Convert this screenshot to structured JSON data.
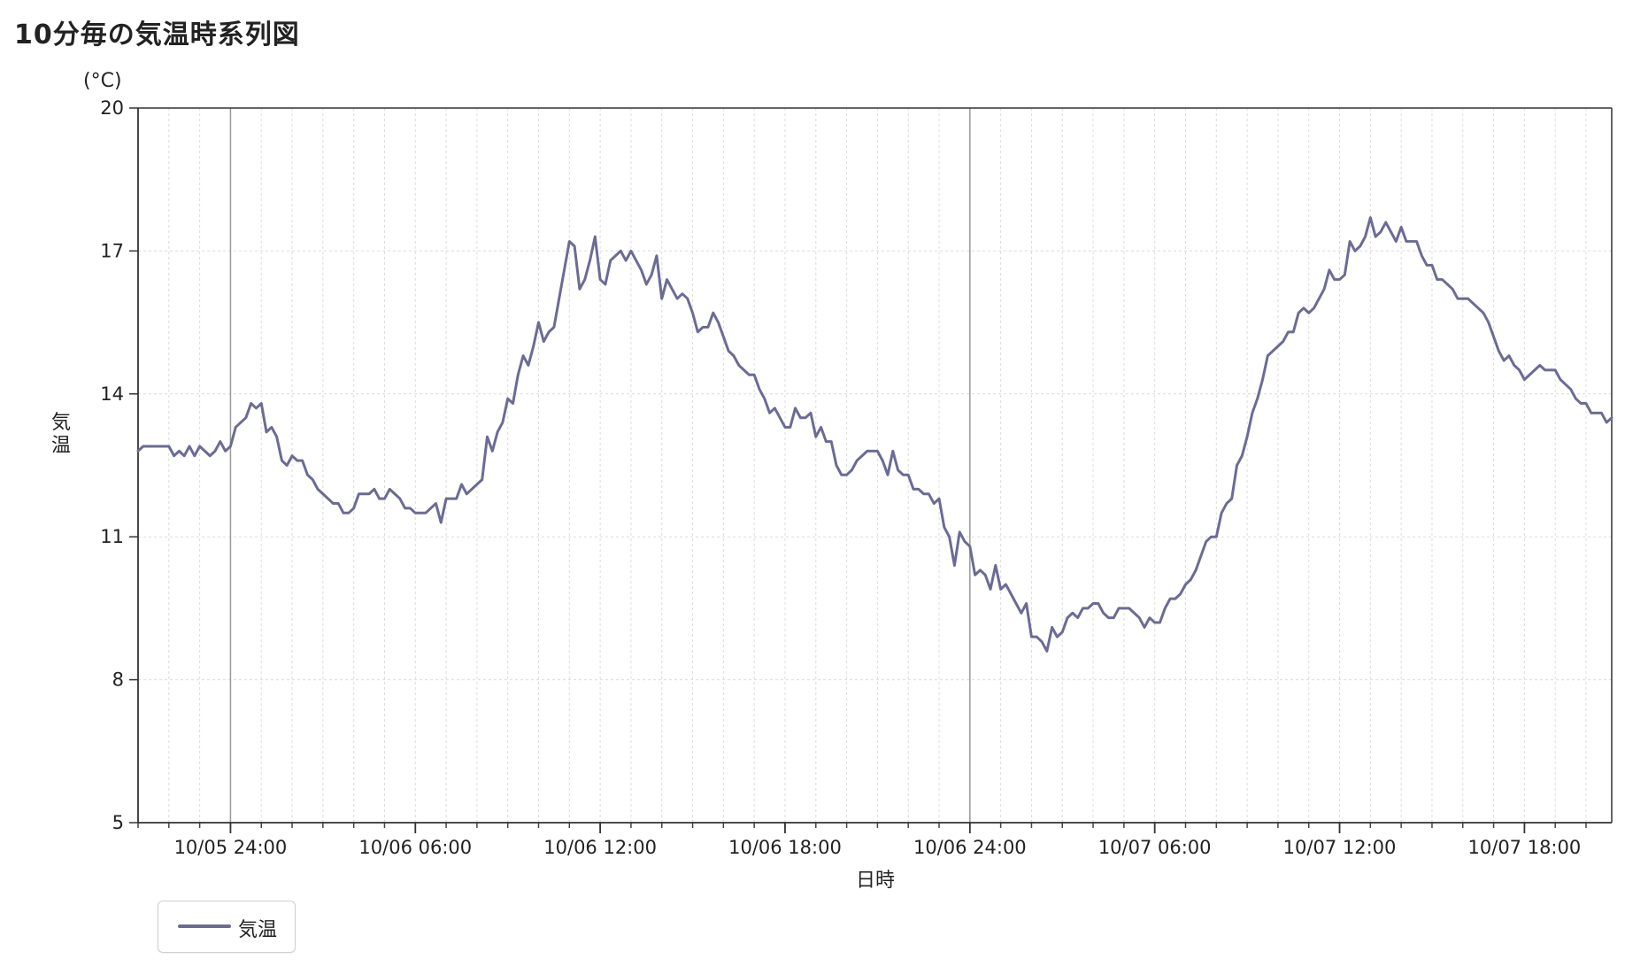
{
  "title": "10分毎の気温時系列図",
  "chart_data": {
    "type": "line",
    "ylabel": "気温",
    "yunit": "(°C)",
    "xlabel": "日時",
    "ylim": [
      5,
      20
    ],
    "yticks": [
      5,
      8,
      11,
      14,
      17,
      20
    ],
    "xlim": [
      "2023-10-05 21:00",
      "2023-10-07 20:50"
    ],
    "xticks": [
      {
        "time": "2023-10-06 00:00",
        "label": "10/05 24:00"
      },
      {
        "time": "2023-10-06 06:00",
        "label": "10/06 06:00"
      },
      {
        "time": "2023-10-06 12:00",
        "label": "10/06 12:00"
      },
      {
        "time": "2023-10-06 18:00",
        "label": "10/06 18:00"
      },
      {
        "time": "2023-10-07 00:00",
        "label": "10/06 24:00"
      },
      {
        "time": "2023-10-07 06:00",
        "label": "10/07 06:00"
      },
      {
        "time": "2023-10-07 12:00",
        "label": "10/07 12:00"
      },
      {
        "time": "2023-10-07 18:00",
        "label": "10/07 18:00"
      }
    ],
    "grid": true,
    "legend_position": "bottom-left",
    "series": [
      {
        "name": "気温",
        "color": "#6b6b95",
        "interval_minutes": 10,
        "start": "2023-10-05 21:00",
        "values": [
          12.8,
          12.9,
          12.9,
          12.9,
          12.9,
          12.9,
          12.9,
          12.7,
          12.8,
          12.7,
          12.9,
          12.7,
          12.9,
          12.8,
          12.7,
          12.8,
          13.0,
          12.8,
          12.9,
          13.3,
          13.4,
          13.5,
          13.8,
          13.7,
          13.8,
          13.2,
          13.3,
          13.1,
          12.6,
          12.5,
          12.7,
          12.6,
          12.6,
          12.3,
          12.2,
          12.0,
          11.9,
          11.8,
          11.7,
          11.7,
          11.5,
          11.5,
          11.6,
          11.9,
          11.9,
          11.9,
          12.0,
          11.8,
          11.8,
          12.0,
          11.9,
          11.8,
          11.6,
          11.6,
          11.5,
          11.5,
          11.5,
          11.6,
          11.7,
          11.3,
          11.8,
          11.8,
          11.8,
          12.1,
          11.9,
          12.0,
          12.1,
          12.2,
          13.1,
          12.8,
          13.2,
          13.4,
          13.9,
          13.8,
          14.4,
          14.8,
          14.6,
          15.0,
          15.5,
          15.1,
          15.3,
          15.4,
          16.0,
          16.6,
          17.2,
          17.1,
          16.2,
          16.4,
          16.8,
          17.3,
          16.4,
          16.3,
          16.8,
          16.9,
          17.0,
          16.8,
          17.0,
          16.8,
          16.6,
          16.3,
          16.5,
          16.9,
          16.0,
          16.4,
          16.2,
          16.0,
          16.1,
          16.0,
          15.7,
          15.3,
          15.4,
          15.4,
          15.7,
          15.5,
          15.2,
          14.9,
          14.8,
          14.6,
          14.5,
          14.4,
          14.4,
          14.1,
          13.9,
          13.6,
          13.7,
          13.5,
          13.3,
          13.3,
          13.7,
          13.5,
          13.5,
          13.6,
          13.1,
          13.3,
          13.0,
          13.0,
          12.5,
          12.3,
          12.3,
          12.4,
          12.6,
          12.7,
          12.8,
          12.8,
          12.8,
          12.6,
          12.3,
          12.8,
          12.4,
          12.3,
          12.3,
          12.0,
          12.0,
          11.9,
          11.9,
          11.7,
          11.8,
          11.2,
          11.0,
          10.4,
          11.1,
          10.9,
          10.8,
          10.2,
          10.3,
          10.2,
          9.9,
          10.4,
          9.9,
          10.0,
          9.8,
          9.6,
          9.4,
          9.6,
          8.9,
          8.9,
          8.8,
          8.6,
          9.1,
          8.9,
          9.0,
          9.3,
          9.4,
          9.3,
          9.5,
          9.5,
          9.6,
          9.6,
          9.4,
          9.3,
          9.3,
          9.5,
          9.5,
          9.5,
          9.4,
          9.3,
          9.1,
          9.3,
          9.2,
          9.2,
          9.5,
          9.7,
          9.7,
          9.8,
          10.0,
          10.1,
          10.3,
          10.6,
          10.9,
          11.0,
          11.0,
          11.5,
          11.7,
          11.8,
          12.5,
          12.7,
          13.1,
          13.6,
          13.9,
          14.3,
          14.8,
          14.9,
          15.0,
          15.1,
          15.3,
          15.3,
          15.7,
          15.8,
          15.7,
          15.8,
          16.0,
          16.2,
          16.6,
          16.4,
          16.4,
          16.5,
          17.2,
          17.0,
          17.1,
          17.3,
          17.7,
          17.3,
          17.4,
          17.6,
          17.4,
          17.2,
          17.5,
          17.2,
          17.2,
          17.2,
          16.9,
          16.7,
          16.7,
          16.4,
          16.4,
          16.3,
          16.2,
          16.0,
          16.0,
          16.0,
          15.9,
          15.8,
          15.7,
          15.5,
          15.2,
          14.9,
          14.7,
          14.8,
          14.6,
          14.5,
          14.3,
          14.4,
          14.5,
          14.6,
          14.5,
          14.5,
          14.5,
          14.3,
          14.2,
          14.1,
          13.9,
          13.8,
          13.8,
          13.6,
          13.6,
          13.6,
          13.4,
          13.5
        ]
      }
    ]
  }
}
